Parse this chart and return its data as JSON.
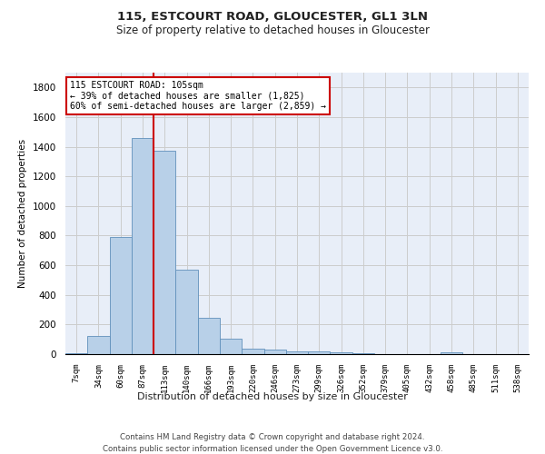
{
  "title1": "115, ESTCOURT ROAD, GLOUCESTER, GL1 3LN",
  "title2": "Size of property relative to detached houses in Gloucester",
  "xlabel": "Distribution of detached houses by size in Gloucester",
  "ylabel": "Number of detached properties",
  "footer1": "Contains HM Land Registry data © Crown copyright and database right 2024.",
  "footer2": "Contains public sector information licensed under the Open Government Licence v3.0.",
  "categories": [
    "7sqm",
    "34sqm",
    "60sqm",
    "87sqm",
    "113sqm",
    "140sqm",
    "166sqm",
    "193sqm",
    "220sqm",
    "246sqm",
    "273sqm",
    "299sqm",
    "326sqm",
    "352sqm",
    "379sqm",
    "405sqm",
    "432sqm",
    "458sqm",
    "485sqm",
    "511sqm",
    "538sqm"
  ],
  "values": [
    5,
    120,
    790,
    1460,
    1370,
    570,
    245,
    105,
    35,
    30,
    20,
    18,
    15,
    8,
    2,
    1,
    1,
    15,
    1,
    1,
    1
  ],
  "bar_color": "#b8d0e8",
  "bar_edge_color": "#6090bb",
  "grid_color": "#cccccc",
  "vline_color": "#cc0000",
  "vline_x": 3.5,
  "annotation_text": "115 ESTCOURT ROAD: 105sqm\n← 39% of detached houses are smaller (1,825)\n60% of semi-detached houses are larger (2,859) →",
  "annotation_box_color": "#ffffff",
  "annotation_box_edge": "#cc0000",
  "ylim": [
    0,
    1900
  ],
  "yticks": [
    0,
    200,
    400,
    600,
    800,
    1000,
    1200,
    1400,
    1600,
    1800
  ],
  "bg_color": "#ffffff",
  "plot_bg_color": "#e8eef8"
}
